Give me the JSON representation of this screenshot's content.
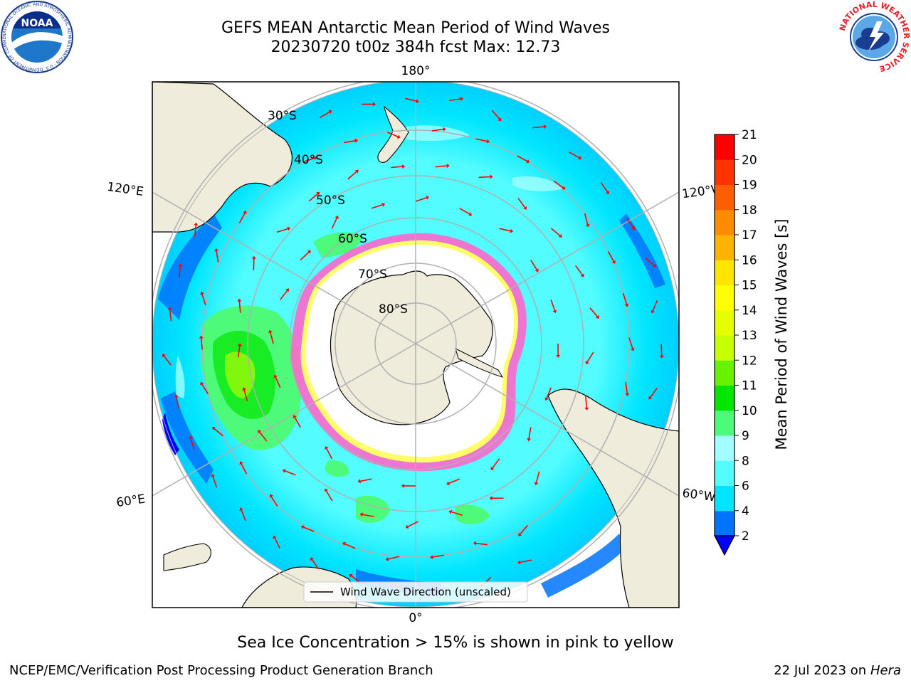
{
  "header": {
    "title_line1": "GEFS MEAN Antarctic Mean Period of Wind Waves",
    "title_line2": "20230720 t00z 384h fcst   Max: 12.73"
  },
  "logos": {
    "left": {
      "name": "noaa-logo",
      "text": "NOAA",
      "ring_text": "NATIONAL OCEANIC AND ATMOSPHERIC ADMINISTRATION · U.S. DEPARTMENT OF COMMERCE"
    },
    "right": {
      "name": "nws-logo",
      "ring_text": "NATIONAL WEATHER SERVICE"
    }
  },
  "map": {
    "projection": "south-polar-stereographic",
    "lon_labels": {
      "top": "180°",
      "bottom": "0°",
      "upper_left": "120°E",
      "lower_left": "60°E",
      "upper_right": "120°W",
      "lower_right": "60°W"
    },
    "lat_labels": [
      "30°S",
      "40°S",
      "50°S",
      "60°S",
      "70°S",
      "80°S"
    ],
    "legend": "Wind Wave Direction (unscaled)",
    "arrow_color": "#ff0000",
    "land_color": "#efecdc",
    "ice_colors": [
      "#ff66cc",
      "#ffff66"
    ]
  },
  "colorbar": {
    "label": "Mean Period of Wind Waves [s]",
    "ticks": [
      "2",
      "4",
      "6",
      "8",
      "9",
      "10",
      "11",
      "12",
      "13",
      "14",
      "15",
      "16",
      "17",
      "18",
      "19",
      "20",
      "21"
    ],
    "colors": [
      "#0073ff",
      "#00e5ff",
      "#52fcff",
      "#a3ffff",
      "#4dfa7a",
      "#00e600",
      "#66f200",
      "#c8ff00",
      "#e5ff00",
      "#ffff00",
      "#ffe600",
      "#ffb300",
      "#ff8c00",
      "#ff5e00",
      "#ff3300",
      "#ff0000"
    ],
    "under_color": "#0000ff"
  },
  "footer": {
    "caption": "Sea Ice Concentration > 15% is shown in pink to yellow",
    "left": "NCEP/EMC/Verification Post Processing Product Generation Branch",
    "right_date": "22 Jul 2023 on ",
    "right_host": "Hera"
  }
}
